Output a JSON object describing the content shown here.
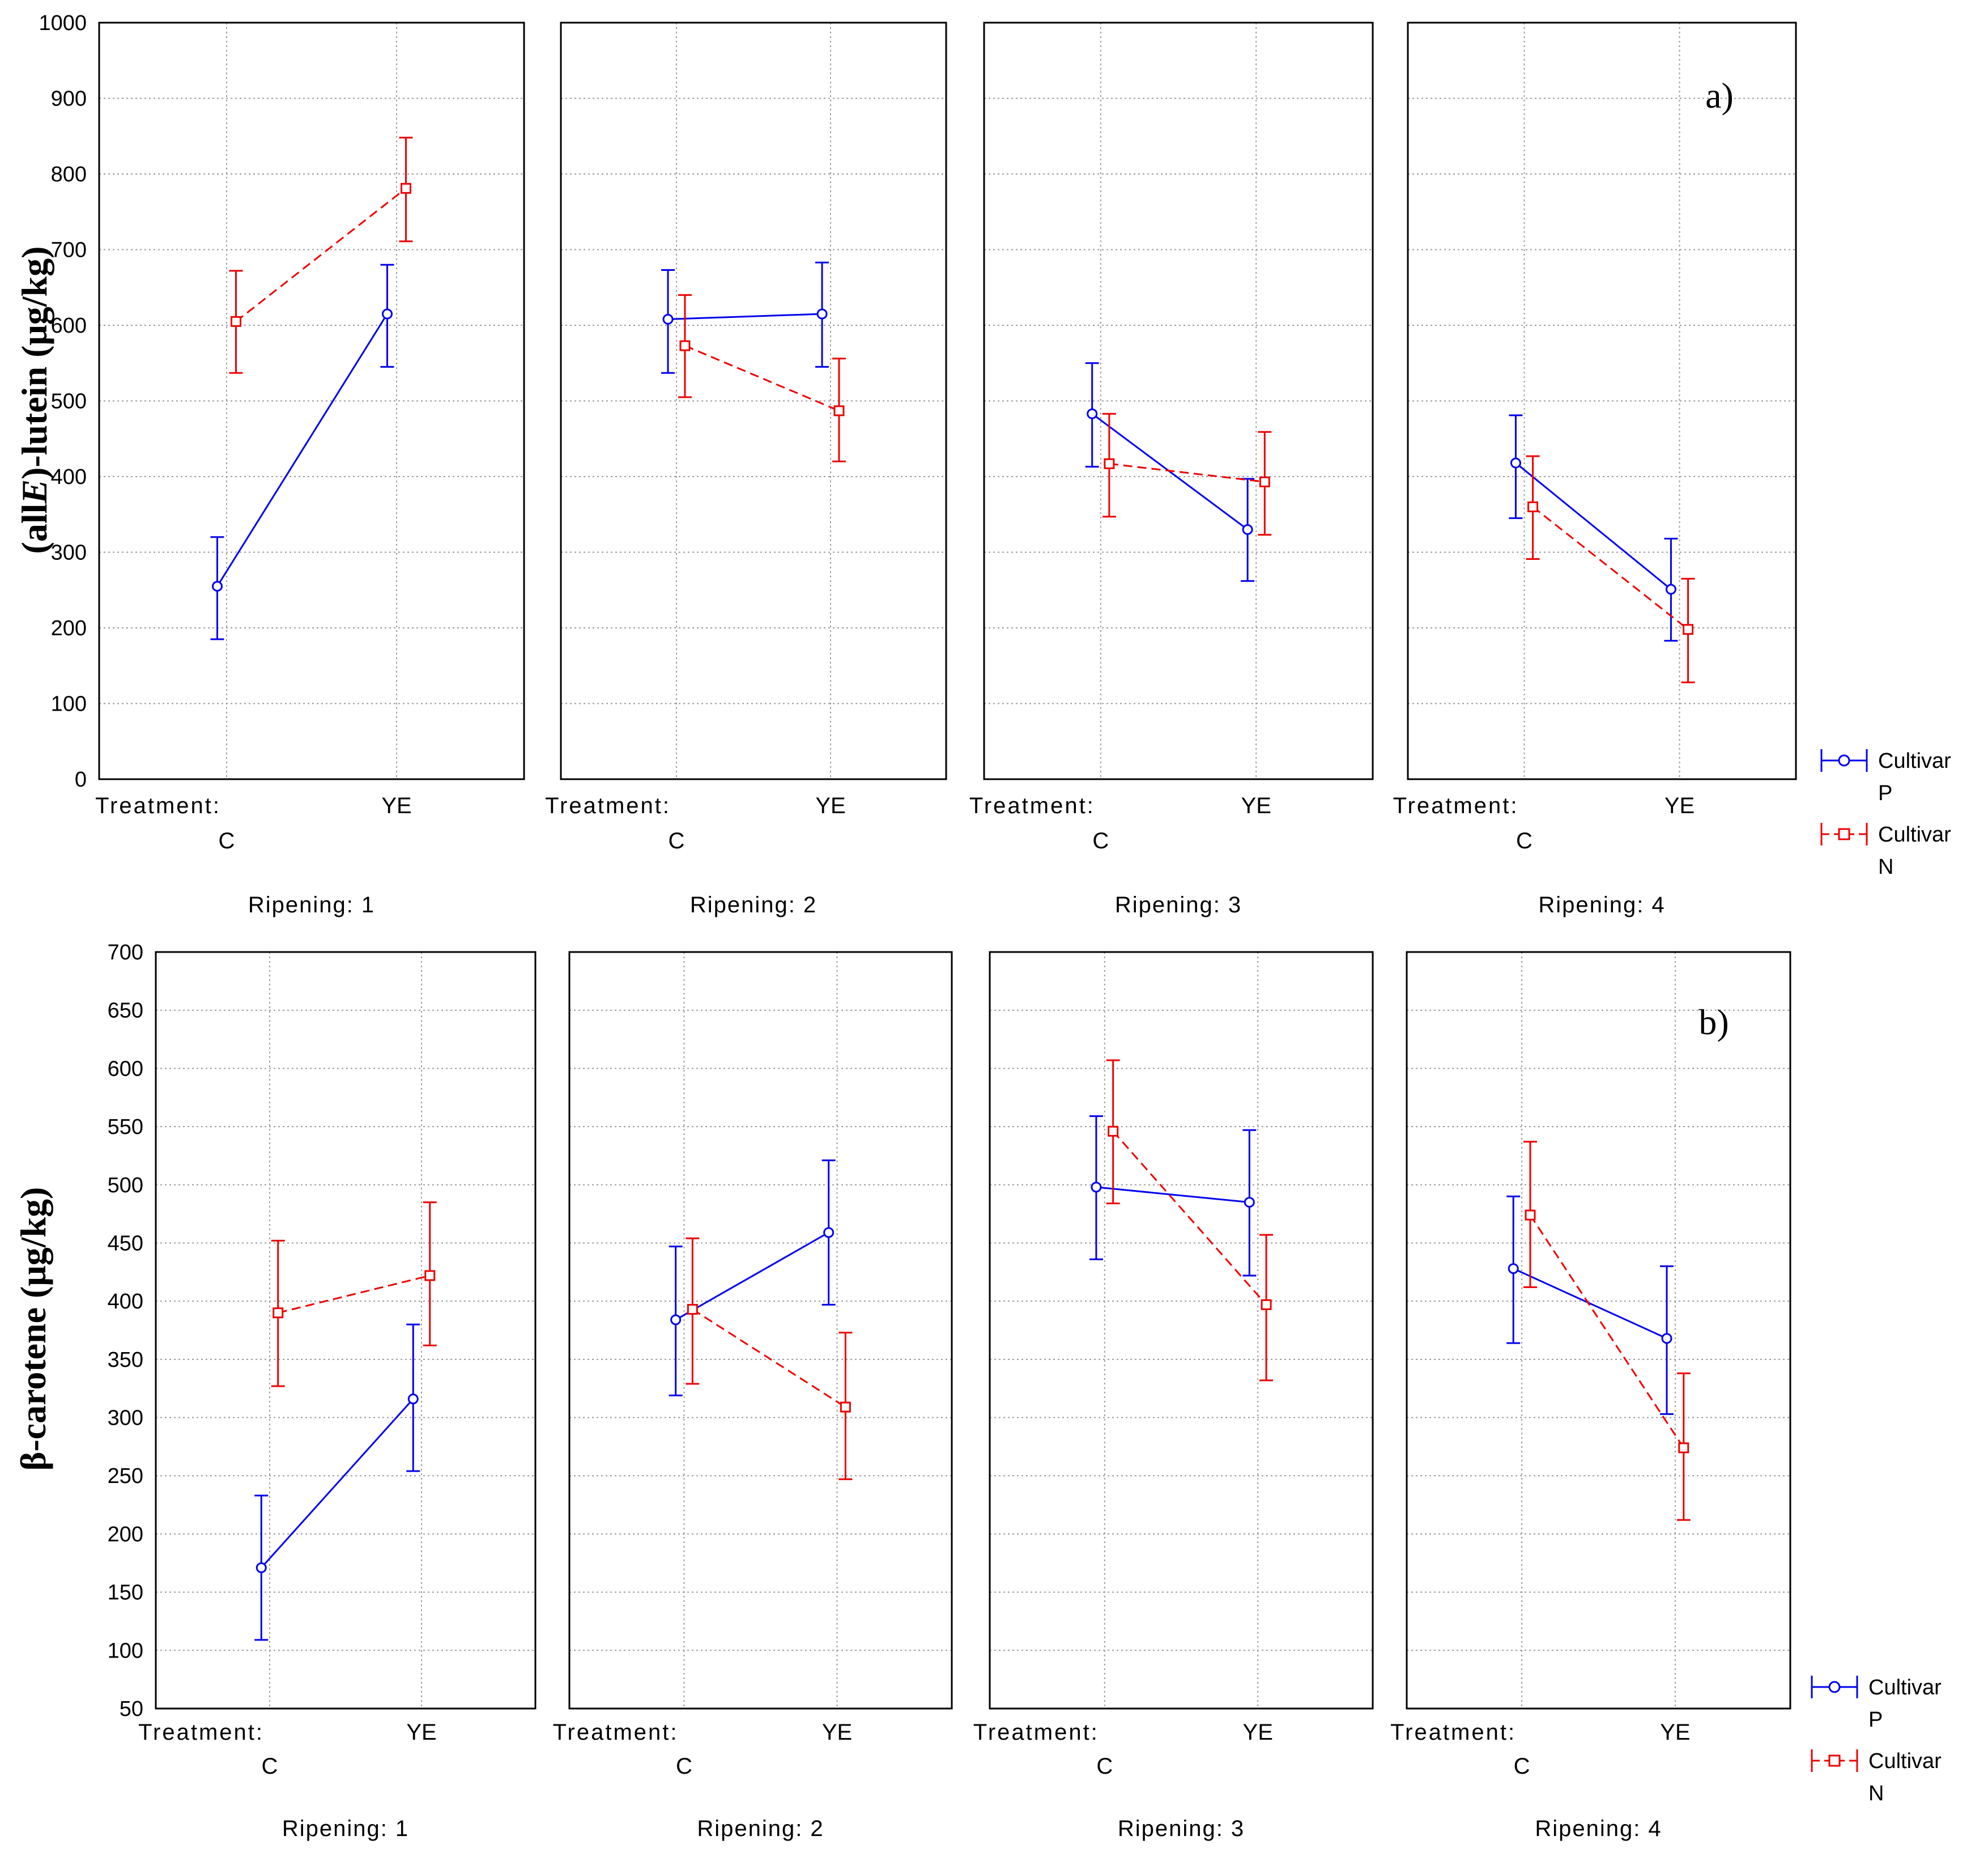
{
  "chart_data": [
    {
      "type": "line",
      "panel_label": "a)",
      "ylabel_parts": [
        "(all",
        "E",
        ")-lutein (μg/kg)"
      ],
      "ylim": [
        0,
        1000
      ],
      "yticks": [
        0,
        100,
        200,
        300,
        400,
        500,
        600,
        700,
        800,
        900,
        1000
      ],
      "x_categories": [
        "C",
        "YE"
      ],
      "treatment_prefix": "Treatment:",
      "grid": true,
      "subplots": [
        {
          "title": "Ripening: 1",
          "series": [
            {
              "name": "Cultivar P",
              "values": [
                255,
                615
              ],
              "lower": [
                185,
                545
              ],
              "upper": [
                320,
                680
              ]
            },
            {
              "name": "Cultivar N",
              "values": [
                605,
                781
              ],
              "lower": [
                537,
                711
              ],
              "upper": [
                672,
                848
              ]
            }
          ]
        },
        {
          "title": "Ripening: 2",
          "series": [
            {
              "name": "Cultivar P",
              "values": [
                608,
                615
              ],
              "lower": [
                537,
                545
              ],
              "upper": [
                673,
                683
              ]
            },
            {
              "name": "Cultivar N",
              "values": [
                573,
                487
              ],
              "lower": [
                505,
                420
              ],
              "upper": [
                640,
                556
              ]
            }
          ]
        },
        {
          "title": "Ripening: 3",
          "series": [
            {
              "name": "Cultivar P",
              "values": [
                483,
                330
              ],
              "lower": [
                413,
                262
              ],
              "upper": [
                550,
                397
              ]
            },
            {
              "name": "Cultivar N",
              "values": [
                417,
                393
              ],
              "lower": [
                347,
                323
              ],
              "upper": [
                483,
                459
              ]
            }
          ]
        },
        {
          "title": "Ripening: 4",
          "series": [
            {
              "name": "Cultivar P",
              "values": [
                418,
                251
              ],
              "lower": [
                345,
                183
              ],
              "upper": [
                481,
                318
              ]
            },
            {
              "name": "Cultivar N",
              "values": [
                360,
                198
              ],
              "lower": [
                291,
                128
              ],
              "upper": [
                427,
                265
              ]
            }
          ]
        }
      ]
    },
    {
      "type": "line",
      "panel_label": "b)",
      "ylabel_parts": [
        "β-carotene (μg/kg)"
      ],
      "ylim": [
        50,
        700
      ],
      "yticks": [
        50,
        100,
        150,
        200,
        250,
        300,
        350,
        400,
        450,
        500,
        550,
        600,
        650,
        700
      ],
      "x_categories": [
        "C",
        "YE"
      ],
      "treatment_prefix": "Treatment:",
      "grid": true,
      "subplots": [
        {
          "title": "Ripening: 1",
          "series": [
            {
              "name": "Cultivar P",
              "values": [
                171,
                316
              ],
              "lower": [
                109,
                254
              ],
              "upper": [
                233,
                380
              ]
            },
            {
              "name": "Cultivar N",
              "values": [
                390,
                422
              ],
              "lower": [
                327,
                362
              ],
              "upper": [
                452,
                485
              ]
            }
          ]
        },
        {
          "title": "Ripening: 2",
          "series": [
            {
              "name": "Cultivar P",
              "values": [
                384,
                459
              ],
              "lower": [
                319,
                397
              ],
              "upper": [
                447,
                521
              ]
            },
            {
              "name": "Cultivar N",
              "values": [
                393,
                309
              ],
              "lower": [
                329,
                247
              ],
              "upper": [
                454,
                373
              ]
            }
          ]
        },
        {
          "title": "Ripening: 3",
          "series": [
            {
              "name": "Cultivar P",
              "values": [
                498,
                485
              ],
              "lower": [
                436,
                422
              ],
              "upper": [
                559,
                547
              ]
            },
            {
              "name": "Cultivar N",
              "values": [
                546,
                397
              ],
              "lower": [
                484,
                332
              ],
              "upper": [
                607,
                457
              ]
            }
          ]
        },
        {
          "title": "Ripening: 4",
          "series": [
            {
              "name": "Cultivar P",
              "values": [
                428,
                368
              ],
              "lower": [
                364,
                303
              ],
              "upper": [
                490,
                430
              ]
            },
            {
              "name": "Cultivar N",
              "values": [
                474,
                274
              ],
              "lower": [
                412,
                212
              ],
              "upper": [
                537,
                338
              ]
            }
          ]
        }
      ]
    }
  ],
  "legend": [
    {
      "name": "Cultivar P",
      "line1": "Cultivar",
      "line2": "P",
      "color": "#0000ee",
      "marker": "circle",
      "dash": "solid"
    },
    {
      "name": "Cultivar N",
      "line1": "Cultivar",
      "line2": "N",
      "color": "#ee0000",
      "marker": "square",
      "dash": "dashed"
    }
  ]
}
